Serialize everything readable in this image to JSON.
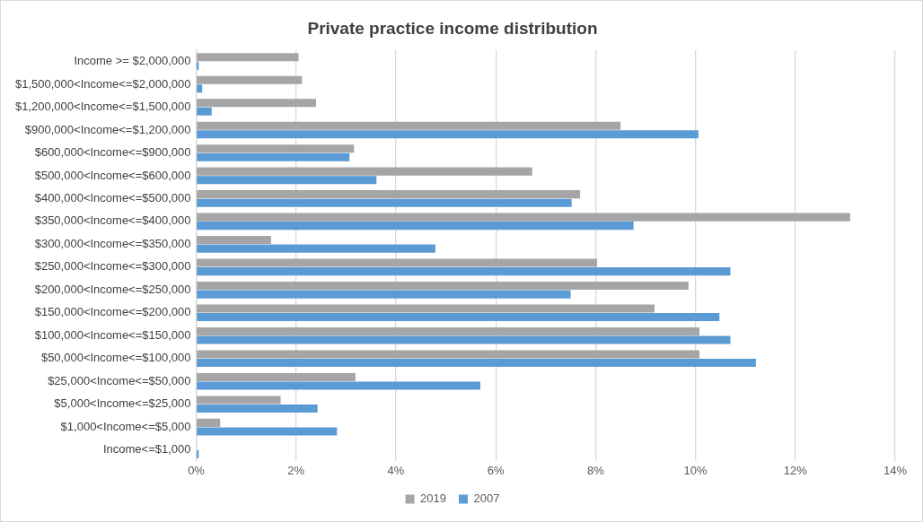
{
  "chart_data": {
    "type": "bar",
    "orientation": "horizontal",
    "title": "Private practice income distribution",
    "categories": [
      "Income >= $2,000,000",
      "$1,500,000<Income<=$2,000,000",
      "$1,200,000<Income<=$1,500,000",
      "$900,000<Income<=$1,200,000",
      "$600,000<Income<=$900,000",
      "$500,000<Income<=$600,000",
      "$400,000<Income<=$500,000",
      "$350,000<Income<=$400,000",
      "$300,000<Income<=$350,000",
      "$250,000<Income<=$300,000",
      "$200,000<Income<=$250,000",
      "$150,000<Income<=$200,000",
      "$100,000<Income<=$150,000",
      "$50,000<Income<=$100,000",
      "$25,000<Income<=$50,000",
      "$5,000<Income<=$25,000",
      "$1,000<Income<=$5,000",
      "Income<=$1,000"
    ],
    "series": [
      {
        "name": "2019",
        "color": "#a5a5a5",
        "values": [
          2.05,
          2.12,
          2.4,
          8.5,
          3.16,
          6.73,
          7.69,
          13.1,
          1.5,
          8.03,
          9.86,
          9.18,
          10.08,
          10.08,
          3.19,
          1.69,
          0.48,
          0
        ]
      },
      {
        "name": "2007",
        "color": "#5b9bd5",
        "values": [
          0.05,
          0.12,
          0.31,
          10.06,
          3.07,
          3.61,
          7.52,
          8.76,
          4.79,
          10.7,
          7.5,
          10.48,
          10.7,
          11.21,
          5.69,
          2.43,
          2.82,
          0.05
        ]
      }
    ],
    "xlim": [
      0,
      14
    ],
    "xticks": [
      {
        "value": 0,
        "label": "0%"
      },
      {
        "value": 2,
        "label": "2%"
      },
      {
        "value": 4,
        "label": "4%"
      },
      {
        "value": 6,
        "label": "6%"
      },
      {
        "value": 8,
        "label": "8%"
      },
      {
        "value": 10,
        "label": "10%"
      },
      {
        "value": 12,
        "label": "12%"
      },
      {
        "value": 14,
        "label": "14%"
      }
    ],
    "grid": "x",
    "legend": "bottom"
  }
}
